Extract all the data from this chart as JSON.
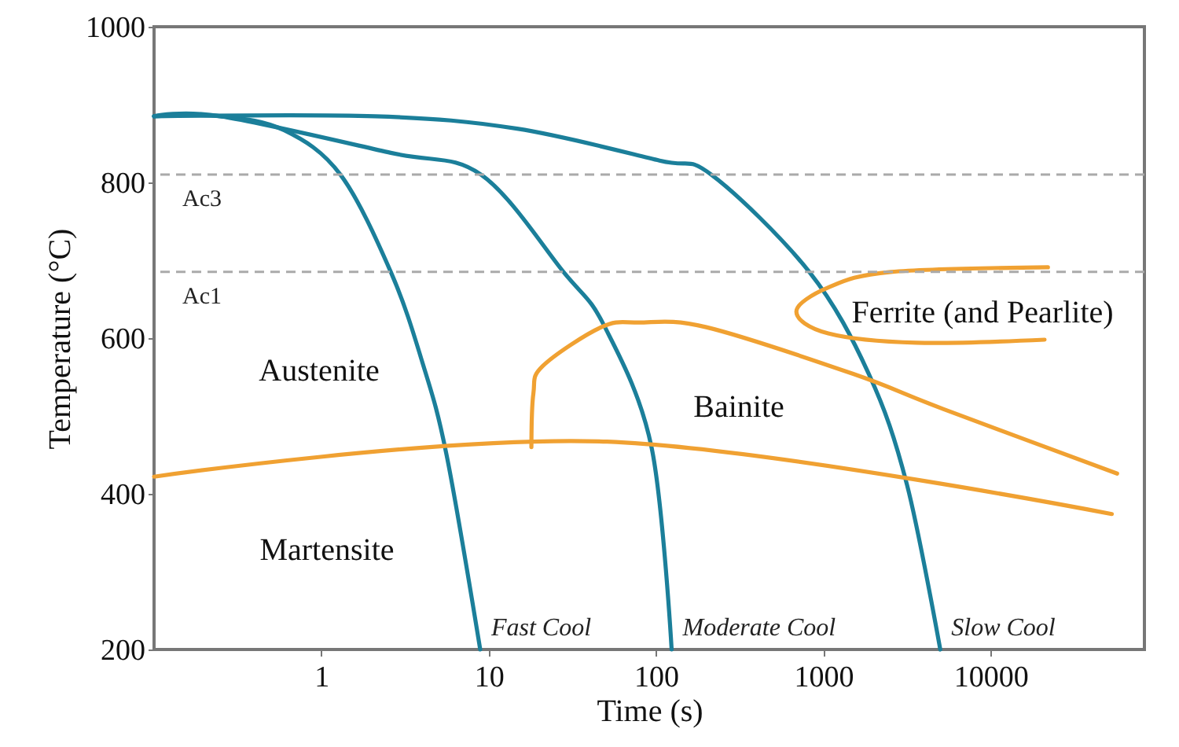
{
  "chart_data": {
    "type": "line",
    "xlabel": "Time (s)",
    "ylabel": "Temperature (°C)",
    "log": "x",
    "grid": false,
    "marker": "none",
    "line_style": "solid",
    "xlim": [
      0.1,
      83000
    ],
    "xticks": [
      1,
      10,
      100,
      1000,
      10000
    ],
    "ylim": [
      200,
      1000
    ],
    "yticks": [
      200,
      400,
      600,
      800,
      1000
    ],
    "series": [
      {
        "name": "Fast Cool",
        "color": "#1b7f9a",
        "x": [
          0.1,
          0.25,
          0.6,
          1.3,
          2.6,
          4.0,
          5.6,
          8.9
        ],
        "values": [
          885,
          885,
          867,
          810,
          685,
          570,
          450,
          200
        ]
      },
      {
        "name": "Moderate Cool",
        "color": "#1b7f9a",
        "x": [
          0.1,
          0.25,
          2.6,
          9,
          28,
          49,
          94,
          124
        ],
        "values": [
          885,
          885,
          838,
          810,
          685,
          616,
          460,
          200
        ]
      },
      {
        "name": "Slow Cool",
        "color": "#1b7f9a",
        "x": [
          0.1,
          2.1,
          14.8,
          105,
          214,
          825,
          1870,
          3160,
          5000
        ],
        "values": [
          885,
          885,
          869,
          828,
          810,
          685,
          554,
          412,
          200
        ]
      },
      {
        "color": "#f0a132",
        "x": [
          0.1,
          51,
          53000
        ],
        "values": [
          422,
          467,
          374
        ]
      },
      {
        "color": "#f0a132",
        "x": [
          18,
          18.5,
          21,
          47,
          79,
          200,
          1510,
          5200,
          57000
        ],
        "values": [
          460,
          529,
          564,
          614,
          620,
          614,
          554,
          509,
          426
        ]
      },
      {
        "color": "#f0a132",
        "x": [
          22000,
          2530,
          1070,
          690,
          1070,
          3620,
          21000
        ],
        "values": [
          691,
          685,
          665,
          634,
          606,
          594,
          598
        ]
      }
    ],
    "ref_lines": [
      {
        "axis": "y",
        "value": 810,
        "label": "Ac3",
        "color": "#aaaaaa",
        "line_style": "dashed"
      },
      {
        "axis": "y",
        "value": 685,
        "label": "Ac1",
        "color": "#aaaaaa",
        "line_style": "dashed"
      }
    ],
    "annotations": [
      "Austenite",
      "Martensite",
      "Bainite",
      "Ferrite (and Pearlite)"
    ]
  }
}
